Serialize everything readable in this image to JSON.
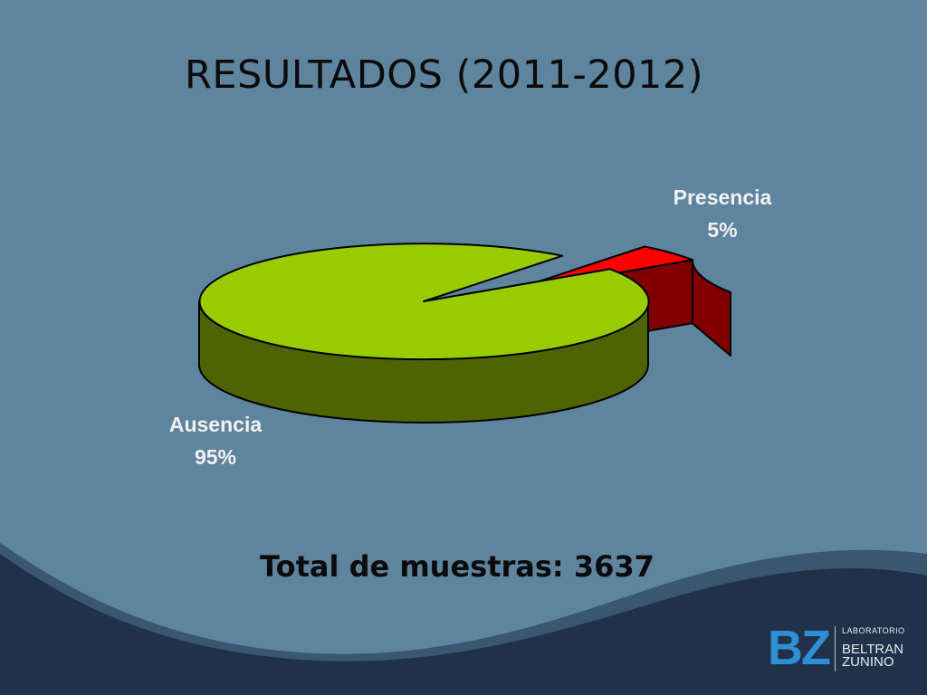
{
  "slide": {
    "title": "RESULTADOS (2011-2012)",
    "total": "Total de muestras: 3637"
  },
  "colors": {
    "background": "#5e849e",
    "bottom_band": "#20314a",
    "ausencia_top": "#99cc00",
    "ausencia_side": "#4e6400",
    "presencia_top": "#ff0000",
    "presencia_side": "#800000"
  },
  "chart_data": {
    "type": "pie",
    "title": "",
    "style": "3d-exploded",
    "slices": [
      {
        "label": "Ausencia",
        "value": 95,
        "value_label": "95%",
        "color": "#99cc00",
        "side_color": "#4e6400"
      },
      {
        "label": "Presencia",
        "value": 5,
        "value_label": "5%",
        "color": "#ff0000",
        "side_color": "#800000",
        "exploded": true
      }
    ],
    "legend": "none"
  },
  "logo": {
    "mark": "BZ",
    "small": "LABORATORIO",
    "line1": "BELTRAN",
    "line2": "ZUNINO"
  }
}
